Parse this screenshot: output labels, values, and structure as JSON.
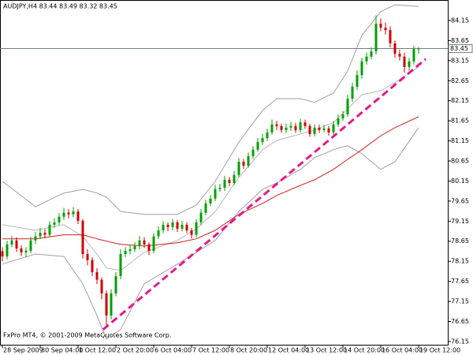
{
  "chart_data": {
    "type": "candlestick",
    "title": "AUDJPY,H4  83.44 83.49 83.32 83.45",
    "footer": "FxPro MT4, © 2001-2009 MetaQuotes Software Corp.",
    "up_color": "#00a000",
    "down_color": "#d00000",
    "open": [
      78.4,
      78.27,
      78.57,
      78.67,
      78.47,
      78.37,
      78.41,
      78.67,
      78.77,
      78.86,
      78.81,
      79.06,
      79.12,
      79.26,
      79.36,
      79.32,
      79.39,
      79.16,
      78.33,
      78.18,
      77.88,
      77.69,
      77.35,
      76.8,
      77.35,
      77.78,
      78.33,
      78.41,
      78.45,
      78.53,
      78.67,
      78.57,
      78.41,
      78.77,
      78.92,
      79.06,
      79.0,
      79.12,
      78.96,
      79.06,
      78.92,
      78.81,
      79.12,
      79.36,
      79.59,
      79.71,
      79.95,
      79.98,
      80.18,
      80.1,
      80.3,
      80.63,
      80.53,
      80.77,
      80.93,
      81.12,
      81.22,
      81.36,
      81.56,
      81.52,
      81.42,
      81.48,
      81.52,
      81.42,
      81.61,
      81.52,
      81.32,
      81.48,
      81.42,
      81.46,
      81.36,
      81.56,
      81.71,
      81.81,
      82.2,
      82.5,
      82.79,
      83.13,
      83.25,
      83.38,
      84.07,
      83.97,
      83.91,
      83.58,
      83.32,
      83.25,
      82.99,
      83.13,
      83.44
    ],
    "high": [
      78.5,
      78.66,
      78.78,
      78.75,
      78.55,
      78.5,
      78.76,
      78.88,
      78.98,
      78.95,
      79.15,
      79.22,
      79.35,
      79.48,
      79.45,
      79.5,
      79.45,
      79.2,
      78.45,
      78.25,
      77.98,
      77.75,
      77.42,
      77.45,
      77.88,
      78.45,
      78.5,
      78.55,
      78.62,
      78.78,
      78.75,
      78.62,
      78.85,
      79.02,
      79.15,
      79.12,
      79.2,
      79.18,
      79.15,
      79.12,
      78.98,
      79.2,
      79.45,
      79.68,
      79.8,
      80.05,
      80.08,
      80.28,
      80.25,
      80.4,
      80.72,
      80.7,
      80.86,
      81.02,
      81.22,
      81.32,
      81.45,
      81.68,
      81.65,
      81.58,
      81.58,
      81.62,
      81.6,
      81.7,
      81.68,
      81.58,
      81.56,
      81.55,
      81.55,
      81.52,
      81.65,
      81.8,
      81.9,
      82.3,
      82.6,
      82.9,
      83.22,
      83.35,
      83.48,
      84.28,
      84.2,
      84.1,
      84.0,
      83.65,
      83.42,
      83.35,
      83.22,
      83.52,
      83.49
    ],
    "low": [
      78.15,
      78.2,
      78.5,
      78.38,
      78.28,
      78.25,
      78.35,
      78.58,
      78.7,
      78.72,
      78.75,
      78.98,
      79.05,
      79.18,
      79.22,
      79.25,
      79.08,
      78.22,
      78.05,
      77.78,
      77.58,
      77.2,
      76.52,
      76.7,
      77.28,
      77.7,
      78.25,
      78.32,
      78.38,
      78.45,
      78.48,
      78.3,
      78.35,
      78.7,
      78.85,
      78.9,
      78.92,
      78.88,
      78.9,
      78.85,
      78.72,
      78.75,
      79.05,
      79.3,
      79.52,
      79.65,
      79.88,
      79.9,
      80.02,
      80.05,
      80.25,
      80.45,
      80.48,
      80.7,
      80.88,
      81.05,
      81.15,
      81.3,
      81.42,
      81.35,
      81.35,
      81.4,
      81.35,
      81.36,
      81.45,
      81.25,
      81.26,
      81.35,
      81.36,
      81.28,
      81.3,
      81.5,
      81.65,
      81.75,
      82.12,
      82.42,
      82.7,
      83.05,
      83.18,
      83.3,
      83.88,
      83.8,
      83.48,
      83.22,
      83.15,
      82.85,
      82.9,
      83.05,
      83.32
    ],
    "close": [
      78.27,
      78.57,
      78.67,
      78.47,
      78.37,
      78.41,
      78.67,
      78.77,
      78.86,
      78.81,
      79.06,
      79.12,
      79.26,
      79.36,
      79.32,
      79.39,
      79.16,
      78.33,
      78.18,
      77.88,
      77.69,
      77.35,
      76.8,
      77.35,
      77.78,
      78.33,
      78.41,
      78.45,
      78.53,
      78.67,
      78.57,
      78.41,
      78.77,
      78.92,
      79.06,
      79.0,
      79.12,
      78.96,
      79.06,
      78.92,
      78.81,
      79.12,
      79.36,
      79.59,
      79.71,
      79.95,
      79.98,
      80.18,
      80.1,
      80.3,
      80.63,
      80.53,
      80.77,
      80.93,
      81.12,
      81.22,
      81.36,
      81.56,
      81.52,
      81.42,
      81.48,
      81.52,
      81.42,
      81.61,
      81.52,
      81.32,
      81.48,
      81.42,
      81.46,
      81.36,
      81.56,
      81.71,
      81.81,
      82.2,
      82.5,
      82.79,
      83.13,
      83.25,
      83.38,
      84.07,
      83.97,
      83.91,
      83.58,
      83.32,
      83.25,
      82.99,
      83.13,
      83.44,
      83.45
    ],
    "indicator_x": [
      0,
      7,
      13,
      17,
      20,
      22,
      25,
      30,
      37,
      41,
      45,
      50,
      55,
      58,
      63,
      66,
      70,
      73,
      76,
      80,
      83,
      88
    ],
    "indicators": [
      {
        "color": "#a0a0a0",
        "values": [
          80.14,
          79.51,
          79.85,
          79.94,
          79.85,
          79.75,
          79.39,
          79.32,
          79.32,
          79.55,
          80.14,
          81.12,
          81.91,
          82.2,
          82.2,
          82.11,
          82.34,
          82.89,
          83.78,
          84.37,
          84.54,
          84.5
        ]
      },
      {
        "color": "#b8b8b8",
        "values": [
          79.06,
          78.92,
          79.06,
          78.77,
          78.33,
          77.98,
          77.92,
          78.37,
          78.67,
          78.96,
          79.39,
          80.24,
          80.93,
          81.16,
          81.32,
          81.42,
          81.61,
          81.95,
          82.3,
          82.4,
          82.6,
          82.99
        ]
      },
      {
        "color": "#a0a0a0",
        "values": [
          78.08,
          78.33,
          78.27,
          77.59,
          76.8,
          76.21,
          76.45,
          77.59,
          78.08,
          78.37,
          78.67,
          79.39,
          79.94,
          80.1,
          80.44,
          80.73,
          80.93,
          81.03,
          80.83,
          80.44,
          80.63,
          81.48
        ]
      },
      {
        "color": "#d02020",
        "values": [
          78.71,
          78.71,
          78.81,
          78.81,
          78.71,
          78.65,
          78.57,
          78.53,
          78.61,
          78.71,
          78.92,
          79.32,
          79.59,
          79.79,
          80.04,
          80.18,
          80.44,
          80.69,
          80.93,
          81.28,
          81.48,
          81.75
        ]
      }
    ],
    "trendline": {
      "color": "#e6198c",
      "x": [
        21.3,
        89.5
      ],
      "values": [
        76.45,
        83.19
      ]
    },
    "price_line": 83.45,
    "xlim": [
      -0.5,
      94.17
    ],
    "ylim": [
      76.07,
      84.66
    ],
    "yticks": [
      76.15,
      76.65,
      77.15,
      77.65,
      78.15,
      78.65,
      79.15,
      79.65,
      80.15,
      80.65,
      81.15,
      81.65,
      82.15,
      82.65,
      83.15,
      83.65,
      84.15
    ],
    "xticks": [
      {
        "value": 0,
        "label": "28 Sep 2009"
      },
      {
        "value": 8,
        "label": "30 Sep 04:00"
      },
      {
        "value": 16,
        "label": "1 Oct 12:00"
      },
      {
        "value": 24,
        "label": "2 Oct 20:00"
      },
      {
        "value": 32,
        "label": "6 Oct 04:00"
      },
      {
        "value": 40,
        "label": "7 Oct 12:00"
      },
      {
        "value": 48,
        "label": "8 Oct 20:00"
      },
      {
        "value": 56,
        "label": "12 Oct 04:00"
      },
      {
        "value": 64,
        "label": "13 Oct 12:00"
      },
      {
        "value": 72,
        "label": "14 Oct 20:00"
      },
      {
        "value": 80,
        "label": "16 Oct 04:00"
      },
      {
        "value": 88,
        "label": "19 Oct 12:00"
      }
    ]
  }
}
